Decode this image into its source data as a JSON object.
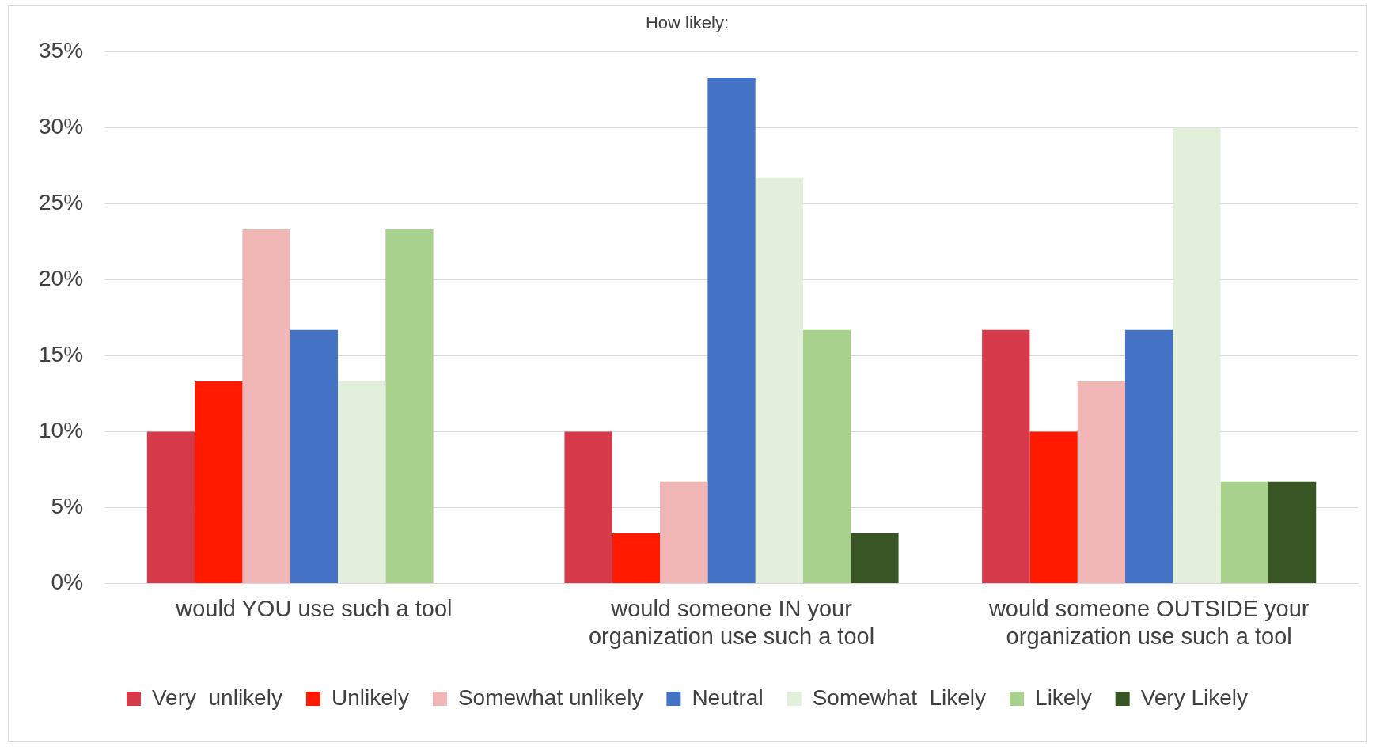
{
  "chart_data": {
    "type": "bar",
    "title": "How likely:",
    "categories": [
      "would YOU use such a tool",
      "would someone IN your organization use such a tool",
      "would someone OUTSIDE your organization use such a tool"
    ],
    "series": [
      {
        "name": "Very  unlikely",
        "color": "#d63a4a",
        "values": [
          10,
          10,
          16.7
        ]
      },
      {
        "name": "Unlikely",
        "color": "#ff1a00",
        "values": [
          13.3,
          3.3,
          10
        ]
      },
      {
        "name": "Somewhat unlikely",
        "color": "#f0b5b5",
        "values": [
          23.3,
          6.7,
          13.3
        ]
      },
      {
        "name": "Neutral",
        "color": "#4472c4",
        "values": [
          16.7,
          33.3,
          16.7
        ]
      },
      {
        "name": "Somewhat  Likely",
        "color": "#e2efda",
        "values": [
          13.3,
          26.7,
          30
        ]
      },
      {
        "name": "Likely",
        "color": "#a9d18e",
        "values": [
          23.3,
          16.7,
          6.7
        ]
      },
      {
        "name": "Very Likely",
        "color": "#375623",
        "values": [
          0,
          3.3,
          6.7
        ]
      }
    ],
    "ylim": [
      0,
      35
    ],
    "yticks": [
      {
        "value": 0,
        "label": "0%"
      },
      {
        "value": 5,
        "label": "5%"
      },
      {
        "value": 10,
        "label": "10%"
      },
      {
        "value": 15,
        "label": "15%"
      },
      {
        "value": 20,
        "label": "20%"
      },
      {
        "value": 25,
        "label": "25%"
      },
      {
        "value": 30,
        "label": "30%"
      },
      {
        "value": 35,
        "label": "35%"
      }
    ],
    "grid": "y",
    "legend": "bottom"
  }
}
